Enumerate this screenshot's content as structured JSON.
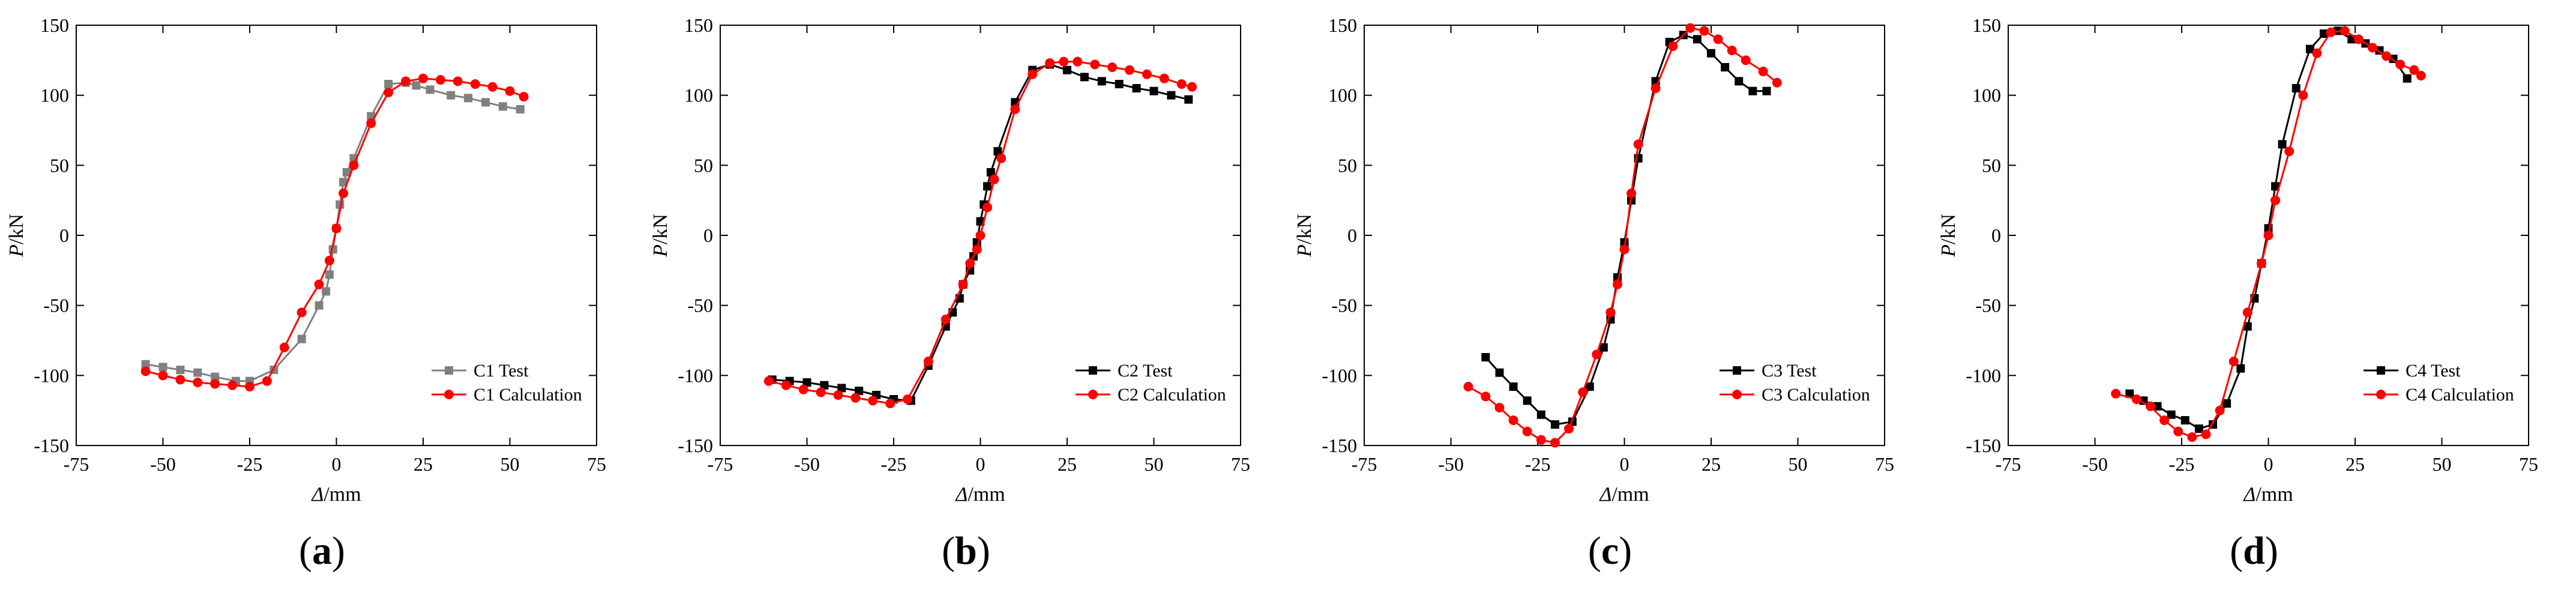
{
  "chart_data": [
    {
      "type": "line",
      "panel_label": "a",
      "xlabel_symbol": "Δ",
      "xlabel_unit": "/mm",
      "ylabel_symbol": "P",
      "ylabel_unit": "/kN",
      "xlim": [
        -75,
        75
      ],
      "ylim": [
        -150,
        150
      ],
      "xticks": [
        -75,
        -50,
        -25,
        0,
        25,
        50,
        75
      ],
      "yticks": [
        -150,
        -100,
        -50,
        0,
        50,
        100,
        150
      ],
      "legend_position": "lower-right",
      "series": [
        {
          "name": "C1 Test",
          "color": "#808080",
          "marker": "square",
          "x": [
            -55,
            -50,
            -45,
            -40,
            -35,
            -29,
            -25,
            -18,
            -10,
            -5,
            -3,
            -2,
            -1,
            0,
            1,
            2,
            3,
            5,
            10,
            15,
            20,
            23,
            27,
            33,
            38,
            43,
            48,
            53
          ],
          "y": [
            -92,
            -94,
            -96,
            -98,
            -101,
            -104,
            -104,
            -96,
            -74,
            -50,
            -40,
            -28,
            -10,
            5,
            22,
            38,
            45,
            55,
            85,
            108,
            109,
            107,
            104,
            100,
            98,
            95,
            92,
            90
          ]
        },
        {
          "name": "C1 Calculation",
          "color": "#ff0000",
          "marker": "circle",
          "x": [
            -55,
            -50,
            -45,
            -40,
            -35,
            -30,
            -25,
            -20,
            -15,
            -10,
            -5,
            -2,
            0,
            2,
            5,
            10,
            15,
            20,
            25,
            30,
            35,
            40,
            45,
            50,
            54
          ],
          "y": [
            -97,
            -100,
            -103,
            -105,
            -106,
            -107,
            -108,
            -104,
            -80,
            -55,
            -35,
            -18,
            5,
            30,
            50,
            80,
            102,
            110,
            112,
            111,
            110,
            108,
            106,
            103,
            99
          ]
        }
      ]
    },
    {
      "type": "line",
      "panel_label": "b",
      "xlabel_symbol": "Δ",
      "xlabel_unit": "/mm",
      "ylabel_symbol": "P",
      "ylabel_unit": "/kN",
      "xlim": [
        -75,
        75
      ],
      "ylim": [
        -150,
        150
      ],
      "xticks": [
        -75,
        -50,
        -25,
        0,
        25,
        50,
        75
      ],
      "yticks": [
        -150,
        -100,
        -50,
        0,
        50,
        100,
        150
      ],
      "legend_position": "lower-right",
      "series": [
        {
          "name": "C2 Test",
          "color": "#000000",
          "marker": "square",
          "x": [
            -60,
            -55,
            -50,
            -45,
            -40,
            -35,
            -30,
            -25,
            -20,
            -15,
            -10,
            -8,
            -6,
            -5,
            -3,
            -2,
            -1,
            0,
            1,
            2,
            3,
            5,
            10,
            15,
            20,
            25,
            30,
            35,
            40,
            45,
            50,
            55,
            60
          ],
          "y": [
            -103,
            -104,
            -105,
            -107,
            -109,
            -111,
            -114,
            -117,
            -118,
            -93,
            -65,
            -55,
            -45,
            -35,
            -25,
            -15,
            -5,
            10,
            22,
            35,
            45,
            60,
            95,
            118,
            122,
            118,
            113,
            110,
            108,
            105,
            103,
            100,
            97
          ]
        },
        {
          "name": "C2 Calculation",
          "color": "#ff0000",
          "marker": "circle",
          "x": [
            -61,
            -56,
            -51,
            -46,
            -41,
            -36,
            -31,
            -26,
            -21,
            -15,
            -10,
            -5,
            -3,
            -1,
            0,
            2,
            4,
            6,
            10,
            15,
            20,
            24,
            28,
            33,
            38,
            43,
            48,
            53,
            58,
            61
          ],
          "y": [
            -104,
            -107,
            -110,
            -112,
            -114,
            -116,
            -118,
            -120,
            -117,
            -90,
            -60,
            -35,
            -20,
            -10,
            0,
            20,
            40,
            55,
            90,
            115,
            123,
            124,
            124,
            122,
            120,
            118,
            115,
            112,
            108,
            106
          ]
        }
      ]
    },
    {
      "type": "line",
      "panel_label": "c",
      "xlabel_symbol": "Δ",
      "xlabel_unit": "/mm",
      "ylabel_symbol": "P",
      "ylabel_unit": "/kN",
      "xlim": [
        -75,
        75
      ],
      "ylim": [
        -150,
        150
      ],
      "xticks": [
        -75,
        -50,
        -25,
        0,
        25,
        50,
        75
      ],
      "yticks": [
        -150,
        -100,
        -50,
        0,
        50,
        100,
        150
      ],
      "legend_position": "lower-right",
      "series": [
        {
          "name": "C3 Test",
          "color": "#000000",
          "marker": "square",
          "x": [
            -40,
            -36,
            -32,
            -28,
            -24,
            -20,
            -15,
            -10,
            -6,
            -4,
            -2,
            0,
            2,
            4,
            9,
            13,
            17,
            21,
            25,
            29,
            33,
            37,
            41
          ],
          "y": [
            -87,
            -98,
            -108,
            -118,
            -128,
            -135,
            -133,
            -108,
            -80,
            -60,
            -30,
            -5,
            25,
            55,
            110,
            138,
            143,
            140,
            130,
            120,
            110,
            103,
            103
          ]
        },
        {
          "name": "C3 Calculation",
          "color": "#ff0000",
          "marker": "circle",
          "x": [
            -45,
            -40,
            -36,
            -32,
            -28,
            -24,
            -20,
            -16,
            -12,
            -8,
            -4,
            -2,
            0,
            2,
            4,
            9,
            14,
            19,
            23,
            27,
            31,
            35,
            40,
            44
          ],
          "y": [
            -108,
            -115,
            -123,
            -132,
            -140,
            -146,
            -148,
            -138,
            -112,
            -85,
            -55,
            -35,
            -10,
            30,
            65,
            105,
            135,
            148,
            146,
            140,
            132,
            125,
            117,
            109
          ]
        }
      ]
    },
    {
      "type": "line",
      "panel_label": "d",
      "xlabel_symbol": "Δ",
      "xlabel_unit": "/mm",
      "ylabel_symbol": "P",
      "ylabel_unit": "/kN",
      "xlim": [
        -75,
        75
      ],
      "ylim": [
        -150,
        150
      ],
      "xticks": [
        -75,
        -50,
        -25,
        0,
        25,
        50,
        75
      ],
      "yticks": [
        -150,
        -100,
        -50,
        0,
        50,
        100,
        150
      ],
      "legend_position": "lower-right",
      "series": [
        {
          "name": "C4 Test",
          "color": "#000000",
          "marker": "square",
          "x": [
            -40,
            -36,
            -32,
            -28,
            -24,
            -20,
            -16,
            -12,
            -8,
            -6,
            -4,
            -2,
            0,
            2,
            4,
            8,
            12,
            16,
            20,
            24,
            28,
            32,
            36,
            40
          ],
          "y": [
            -113,
            -118,
            -122,
            -128,
            -132,
            -138,
            -135,
            -120,
            -95,
            -65,
            -45,
            -20,
            5,
            35,
            65,
            105,
            133,
            144,
            146,
            140,
            137,
            132,
            126,
            112
          ]
        },
        {
          "name": "C4 Calculation",
          "color": "#ff0000",
          "marker": "circle",
          "x": [
            -44,
            -38,
            -34,
            -30,
            -26,
            -22,
            -18,
            -14,
            -10,
            -6,
            -2,
            0,
            2,
            6,
            10,
            14,
            18,
            22,
            26,
            30,
            34,
            38,
            42,
            44
          ],
          "y": [
            -113,
            -117,
            -122,
            -132,
            -140,
            -144,
            -142,
            -125,
            -90,
            -55,
            -20,
            0,
            25,
            60,
            100,
            130,
            145,
            146,
            140,
            134,
            128,
            122,
            118,
            114
          ]
        }
      ]
    }
  ]
}
